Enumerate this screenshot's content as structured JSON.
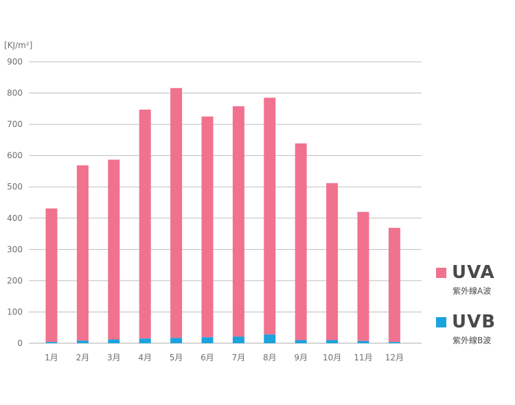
{
  "chart_data": {
    "type": "bar",
    "stacked": true,
    "unit_label": "[KJ/m²]",
    "categories": [
      "1月",
      "2月",
      "3月",
      "4月",
      "5月",
      "6月",
      "7月",
      "8月",
      "9月",
      "10月",
      "11月",
      "12月"
    ],
    "yticks": [
      0,
      100,
      200,
      300,
      400,
      500,
      600,
      700,
      800,
      900
    ],
    "ylim": [
      0,
      900
    ],
    "grid": true,
    "legend_position": "right",
    "series": [
      {
        "name": "UVB",
        "subtitle": "紫外線B波",
        "color": "#1aa3dd",
        "values": [
          4,
          8,
          12,
          15,
          17,
          19,
          21,
          28,
          10,
          10,
          7,
          4
        ]
      },
      {
        "name": "UVA",
        "subtitle": "紫外線A波",
        "color": "#f0728f",
        "values": [
          427,
          561,
          575,
          732,
          799,
          706,
          737,
          757,
          629,
          502,
          413,
          365
        ]
      }
    ]
  }
}
